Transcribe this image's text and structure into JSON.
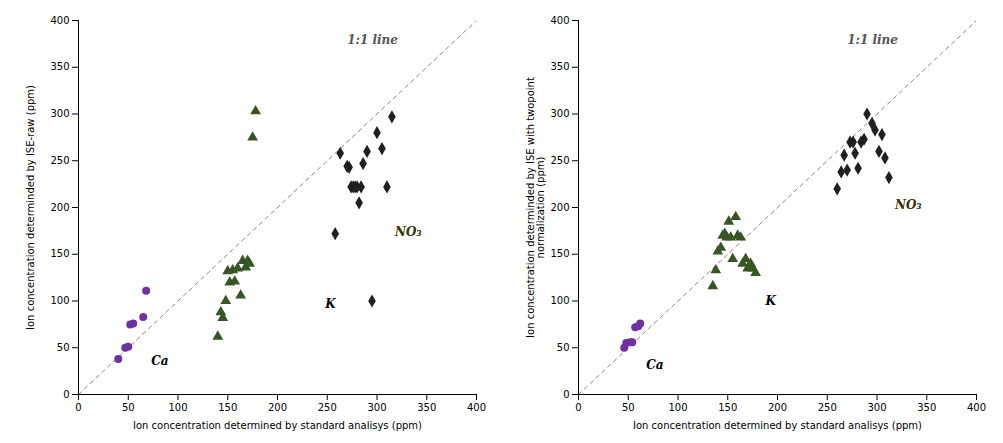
{
  "chart_data": [
    {
      "type": "scatter",
      "xlabel": "Ion concentration determined by standard analisys (ppm)",
      "ylabel": "Ion concentration determinded by ISE-raw (ppm)",
      "xlim": [
        0,
        400
      ],
      "ylim": [
        0,
        400
      ],
      "xticks": [
        0,
        50,
        100,
        150,
        200,
        250,
        300,
        350,
        400
      ],
      "yticks": [
        0,
        50,
        100,
        150,
        200,
        250,
        300,
        350,
        400
      ],
      "reference_line": {
        "x": [
          0,
          400
        ],
        "y": [
          0,
          400
        ],
        "color": "#888888",
        "line_style": "dashed"
      },
      "series": [
        {
          "name": "Ca",
          "color": "#7030A0",
          "marker": "circle",
          "x": [
            40,
            47,
            50,
            52,
            55,
            65,
            68
          ],
          "values": [
            38,
            50,
            51,
            75,
            76,
            83,
            111
          ]
        },
        {
          "name": "K",
          "color": "#375623",
          "marker": "triangle",
          "x": [
            140,
            143,
            145,
            148,
            150,
            152,
            155,
            157,
            160,
            163,
            165,
            168,
            170,
            172,
            175,
            178
          ],
          "values": [
            62,
            88,
            82,
            100,
            132,
            120,
            133,
            121,
            135,
            106,
            143,
            136,
            143,
            140,
            275,
            303
          ]
        },
        {
          "name": "NO₃",
          "color": "#1F1F1F",
          "marker": "diamond",
          "x": [
            258,
            263,
            270,
            272,
            274,
            276,
            278,
            280,
            282,
            284,
            286,
            290,
            295,
            300,
            305,
            310,
            315
          ],
          "values": [
            172,
            258,
            244,
            243,
            222,
            222,
            222,
            222,
            205,
            222,
            247,
            260,
            100,
            280,
            263,
            222,
            297
          ]
        }
      ],
      "annotations": [
        {
          "text": "NO₃",
          "x": 318,
          "y": 170,
          "color": "#333300"
        },
        {
          "text": "K",
          "x": 248,
          "y": 93,
          "color": "black"
        },
        {
          "text": "Ca",
          "x": 73,
          "y": 32,
          "color": "black"
        },
        {
          "text": "1:1 line",
          "x": 270,
          "y": 375,
          "color": "#555555"
        }
      ]
    },
    {
      "type": "scatter",
      "xlabel": "Ion concentration determined by standard analisys (ppm)",
      "ylabel": "Ion concentration determinded by ISE with twopoint\nnormalization (ppm)",
      "xlim": [
        0,
        400
      ],
      "ylim": [
        0,
        400
      ],
      "xticks": [
        0,
        50,
        100,
        150,
        200,
        250,
        300,
        350,
        400
      ],
      "yticks": [
        0,
        50,
        100,
        150,
        200,
        250,
        300,
        350,
        400
      ],
      "reference_line": {
        "x": [
          0,
          400
        ],
        "y": [
          0,
          400
        ],
        "color": "#888888",
        "line_style": "dashed"
      },
      "series": [
        {
          "name": "Ca",
          "color": "#7030A0",
          "marker": "circle",
          "x": [
            46,
            48,
            52,
            54,
            57,
            60,
            62
          ],
          "values": [
            50,
            55,
            56,
            56,
            72,
            73,
            76
          ]
        },
        {
          "name": "K",
          "color": "#375623",
          "marker": "triangle",
          "x": [
            135,
            138,
            140,
            143,
            145,
            147,
            149,
            151,
            153,
            155,
            158,
            160,
            163,
            165,
            168,
            170,
            173,
            175,
            178
          ],
          "values": [
            116,
            133,
            153,
            157,
            170,
            172,
            168,
            185,
            168,
            145,
            190,
            170,
            168,
            140,
            145,
            135,
            140,
            135,
            130
          ]
        },
        {
          "name": "NO₃",
          "color": "#1F1F1F",
          "marker": "diamond",
          "x": [
            260,
            264,
            267,
            270,
            273,
            276,
            278,
            281,
            284,
            287,
            290,
            295,
            298,
            302,
            305,
            308,
            312
          ],
          "values": [
            220,
            238,
            256,
            240,
            270,
            270,
            258,
            242,
            270,
            273,
            300,
            290,
            283,
            260,
            278,
            253,
            232
          ]
        }
      ],
      "annotations": [
        {
          "text": "NO₃",
          "x": 318,
          "y": 198,
          "color": "#333300"
        },
        {
          "text": "K",
          "x": 188,
          "y": 96,
          "color": "black"
        },
        {
          "text": "Ca",
          "x": 68,
          "y": 27,
          "color": "black"
        },
        {
          "text": "1:1 line",
          "x": 270,
          "y": 375,
          "color": "#555555"
        }
      ]
    }
  ]
}
